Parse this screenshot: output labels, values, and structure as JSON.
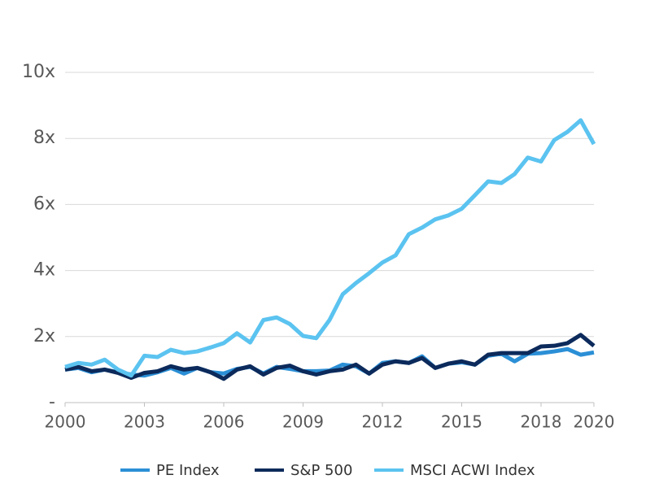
{
  "chart_data": {
    "type": "line",
    "x": [
      2000,
      2000.5,
      2001,
      2001.5,
      2002,
      2002.5,
      2003,
      2003.5,
      2004,
      2004.5,
      2005,
      2005.5,
      2006,
      2006.5,
      2007,
      2007.5,
      2008,
      2008.5,
      2009,
      2009.5,
      2010,
      2010.5,
      2011,
      2011.5,
      2012,
      2012.5,
      2013,
      2013.5,
      2014,
      2014.5,
      2015,
      2015.5,
      2016,
      2016.5,
      2017,
      2017.5,
      2018,
      2018.5,
      2019,
      2019.5,
      2020
    ],
    "series": [
      {
        "name": "PE Index",
        "color": "#2b8fd6",
        "values": [
          1.0,
          1.05,
          0.92,
          1.0,
          0.92,
          0.85,
          0.82,
          0.92,
          1.05,
          0.88,
          1.05,
          0.92,
          0.88,
          1.02,
          1.08,
          0.88,
          1.08,
          1.02,
          0.95,
          0.95,
          0.97,
          1.15,
          1.1,
          0.88,
          1.2,
          1.25,
          1.2,
          1.4,
          1.05,
          1.18,
          1.22,
          1.15,
          1.42,
          1.48,
          1.25,
          1.48,
          1.5,
          1.55,
          1.62,
          1.45,
          1.52
        ]
      },
      {
        "name": "S&P 500",
        "color": "#0c2a5b",
        "values": [
          1.0,
          1.08,
          0.95,
          1.0,
          0.9,
          0.75,
          0.9,
          0.95,
          1.1,
          1.0,
          1.05,
          0.92,
          0.72,
          1.0,
          1.1,
          0.85,
          1.05,
          1.12,
          0.95,
          0.85,
          0.95,
          1.0,
          1.15,
          0.88,
          1.15,
          1.25,
          1.2,
          1.35,
          1.05,
          1.18,
          1.25,
          1.15,
          1.45,
          1.5,
          1.5,
          1.5,
          1.7,
          1.72,
          1.8,
          2.05,
          1.72
        ]
      },
      {
        "name": "MSCI ACWI Index",
        "color": "#5bc3f0",
        "values": [
          1.08,
          1.2,
          1.15,
          1.3,
          1.0,
          0.82,
          1.42,
          1.38,
          1.6,
          1.5,
          1.55,
          1.67,
          1.8,
          2.1,
          1.82,
          2.5,
          2.58,
          2.38,
          2.02,
          1.95,
          2.5,
          3.28,
          3.62,
          3.92,
          4.24,
          4.46,
          5.1,
          5.3,
          5.55,
          5.67,
          5.87,
          6.28,
          6.7,
          6.65,
          6.92,
          7.42,
          7.3,
          7.95,
          8.2,
          8.55,
          7.83
        ]
      }
    ],
    "xlim": [
      2000,
      2020
    ],
    "xticks": [
      2000,
      2003,
      2006,
      2009,
      2012,
      2015,
      2018,
      2020
    ],
    "ylim": [
      0,
      10
    ],
    "yticks": [
      {
        "value": 0,
        "label": "-"
      },
      {
        "value": 2,
        "label": "2x"
      },
      {
        "value": 4,
        "label": "4x"
      },
      {
        "value": 6,
        "label": "6x"
      },
      {
        "value": 8,
        "label": "8x"
      },
      {
        "value": 10,
        "label": "10x"
      }
    ],
    "grid": true,
    "legend": "bottom"
  }
}
